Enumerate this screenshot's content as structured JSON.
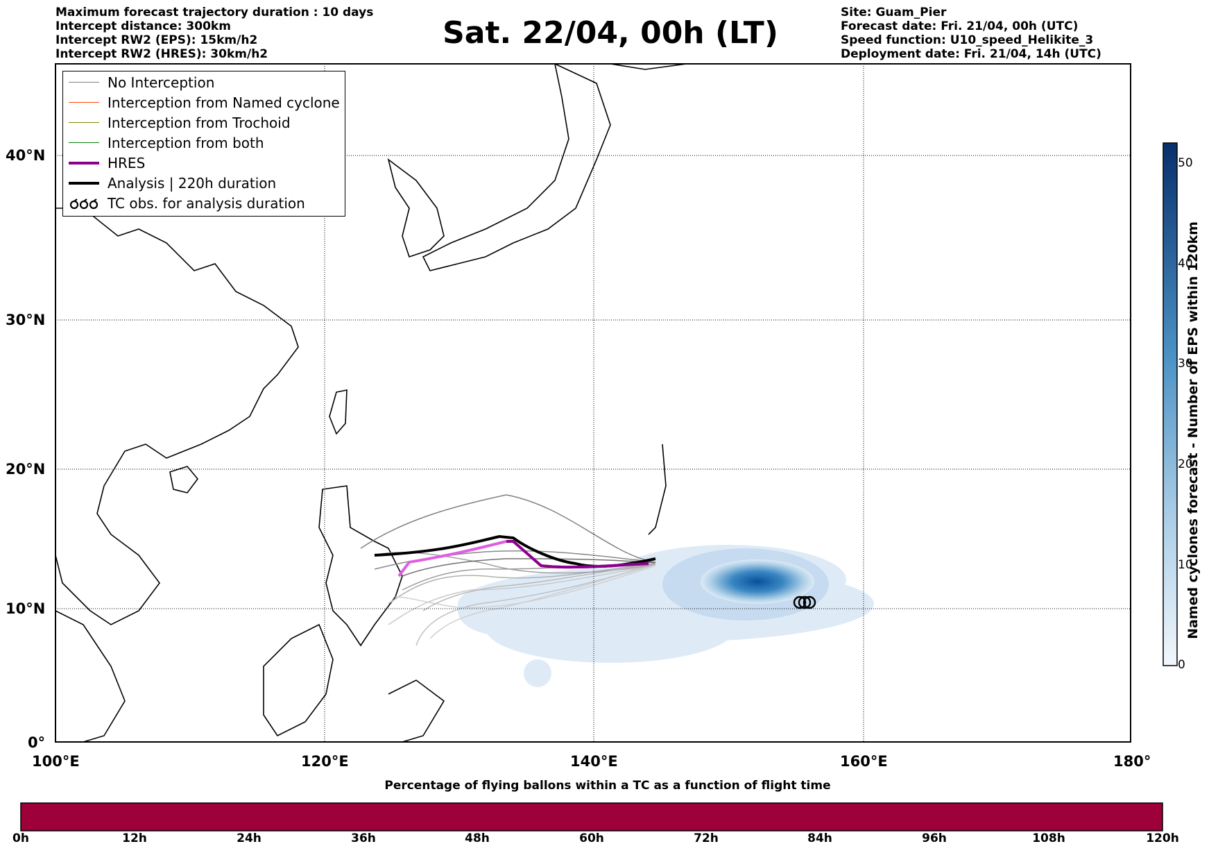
{
  "header_left": [
    "Maximum forecast trajectory duration : 10 days",
    "Intercept distance: 300km",
    "Intercept RW2 (EPS):  15km/h2",
    "Intercept RW2 (HRES): 30km/h2"
  ],
  "header_right": [
    "Site: Guam_Pier",
    "Forecast date: Fri. 21/04, 00h (UTC)",
    "Speed function: U10_speed_Helikite_3",
    "Deployment date: Fri. 21/04, 14h (UTC)"
  ],
  "title": "Sat. 22/04, 00h (LT)",
  "map": {
    "lon_range": [
      100,
      180
    ],
    "lat_range": [
      0,
      45
    ],
    "lat_labels": [
      "0°",
      "10°N",
      "20°N",
      "30°N",
      "40°N"
    ],
    "lon_labels": [
      "100°E",
      "120°E",
      "140°E",
      "160°E",
      "180°"
    ],
    "grid": "dotted"
  },
  "legend": {
    "items": [
      {
        "label": "No Interception",
        "color": "#808080"
      },
      {
        "label": "Interception from Named cyclone",
        "color": "#ff4500"
      },
      {
        "label": "Interception from Trochoid",
        "color": "#808000"
      },
      {
        "label": "Interception from both",
        "color": "#008000"
      },
      {
        "label": "HRES",
        "color": "#8b008b"
      },
      {
        "label": "Analysis | 220h duration",
        "color": "#000000"
      },
      {
        "label": "TC obs. for analysis duration",
        "icon": "cyclone-symbol-icon"
      }
    ]
  },
  "colorbar_eps": {
    "title": "Named cyclones forecast - Number of EPS within 120km",
    "ticks": [
      "0",
      "10",
      "20",
      "30",
      "40",
      "50"
    ],
    "range": [
      0,
      52
    ],
    "colors": [
      "#deebf7",
      "#08306b"
    ]
  },
  "time_bar": {
    "title": "Percentage of flying ballons within a TC as a function of flight time",
    "ticks": [
      "0h",
      "12h",
      "24h",
      "36h",
      "48h",
      "60h",
      "72h",
      "84h",
      "96h",
      "108h",
      "120h"
    ],
    "color": "#9e003a"
  }
}
